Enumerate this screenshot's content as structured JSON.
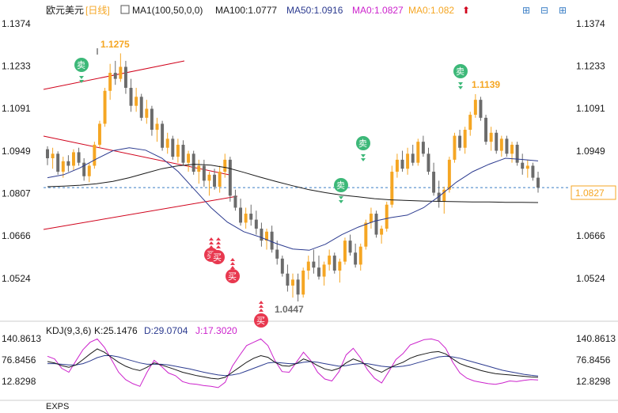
{
  "header": {
    "symbol": "欧元美元",
    "period": "[日线]",
    "ma_label": "MA1(100,50,0,0)",
    "ma100": "MA100:1.0777",
    "ma50": "MA50:1.0916",
    "ma0a": "MA0:1.0827",
    "ma0b": "MA0:1.082",
    "arrow": "⬆"
  },
  "toolbar": {
    "settings_icon": "⊞",
    "collapse_icon": "⊟",
    "expand_icon": "⊞"
  },
  "colors": {
    "up": "#f5a623",
    "down": "#6b6b6b",
    "ma100": "#1a1a1a",
    "ma50": "#2b3a8f",
    "channel": "#d0021b",
    "sell": "#3cb878",
    "buy": "#e8384f",
    "k": "#1a1a1a",
    "d": "#2b3a8f",
    "j": "#cc22cc"
  },
  "annotations": {
    "high1": "1.1275",
    "high2": "1.1139",
    "low": "1.0447",
    "last": "1.0827",
    "sell": "卖",
    "buy": "买"
  },
  "kdj": {
    "label": "KDJ(9,3,6)",
    "k": "K:25.1476",
    "d": "D:29.0704",
    "j": "J:17.3020",
    "ticks": [
      "140.8613",
      "76.8456",
      "12.8298"
    ]
  },
  "bottom_label": "EXPS",
  "chart_data": {
    "type": "candlestick",
    "y_ticks": [
      1.1374,
      1.1233,
      1.1091,
      1.0949,
      1.0807,
      1.0666,
      1.0524
    ],
    "ylim": [
      1.0418,
      1.1395
    ],
    "candles": [
      [
        1.0955,
        1.0965,
        1.0902,
        1.0925
      ],
      [
        1.0925,
        1.096,
        1.089,
        1.094
      ],
      [
        1.094,
        1.0948,
        1.087,
        1.088
      ],
      [
        1.088,
        1.093,
        1.086,
        1.0915
      ],
      [
        1.0915,
        1.0935,
        1.088,
        1.09
      ],
      [
        1.09,
        1.0955,
        1.0885,
        1.0945
      ],
      [
        1.0945,
        1.096,
        1.09,
        1.091
      ],
      [
        1.091,
        1.0925,
        1.085,
        1.0865
      ],
      [
        1.0865,
        1.091,
        1.0845,
        1.09
      ],
      [
        1.09,
        1.098,
        1.089,
        1.097
      ],
      [
        1.097,
        1.105,
        1.096,
        1.104
      ],
      [
        1.104,
        1.116,
        1.103,
        1.115
      ],
      [
        1.115,
        1.124,
        1.112,
        1.121
      ],
      [
        1.121,
        1.125,
        1.117,
        1.119
      ],
      [
        1.119,
        1.1275,
        1.118,
        1.123
      ],
      [
        1.123,
        1.125,
        1.114,
        1.116
      ],
      [
        1.116,
        1.119,
        1.108,
        1.11
      ],
      [
        1.11,
        1.116,
        1.108,
        1.113
      ],
      [
        1.113,
        1.114,
        1.105,
        1.106
      ],
      [
        1.106,
        1.112,
        1.104,
        1.109
      ],
      [
        1.109,
        1.11,
        1.1,
        1.102
      ],
      [
        1.102,
        1.106,
        1.098,
        1.104
      ],
      [
        1.104,
        1.105,
        1.095,
        1.096
      ],
      [
        1.096,
        1.101,
        1.094,
        1.099
      ],
      [
        1.099,
        1.1,
        1.092,
        1.093
      ],
      [
        1.093,
        1.099,
        1.091,
        1.097
      ],
      [
        1.097,
        1.0985,
        1.09,
        1.091
      ],
      [
        1.091,
        1.095,
        1.088,
        1.094
      ],
      [
        1.094,
        1.095,
        1.087,
        1.088
      ],
      [
        1.088,
        1.092,
        1.084,
        1.09
      ],
      [
        1.09,
        1.092,
        1.083,
        1.085
      ],
      [
        1.085,
        1.088,
        1.08,
        1.087
      ],
      [
        1.087,
        1.089,
        1.082,
        1.083
      ],
      [
        1.083,
        1.09,
        1.081,
        1.088
      ],
      [
        1.088,
        1.094,
        1.086,
        1.092
      ],
      [
        1.092,
        1.093,
        1.078,
        1.08
      ],
      [
        1.08,
        1.082,
        1.075,
        1.076
      ],
      [
        1.076,
        1.079,
        1.07,
        1.071
      ],
      [
        1.071,
        1.076,
        1.069,
        1.074
      ],
      [
        1.074,
        1.077,
        1.07,
        1.072
      ],
      [
        1.072,
        1.075,
        1.067,
        1.069
      ],
      [
        1.069,
        1.071,
        1.063,
        1.065
      ],
      [
        1.065,
        1.069,
        1.062,
        1.068
      ],
      [
        1.068,
        1.07,
        1.061,
        1.062
      ],
      [
        1.062,
        1.065,
        1.057,
        1.059
      ],
      [
        1.059,
        1.06,
        1.053,
        1.054
      ],
      [
        1.054,
        1.057,
        1.048,
        1.05
      ],
      [
        1.05,
        1.054,
        1.046,
        1.052
      ],
      [
        1.052,
        1.054,
        1.0447,
        1.047
      ],
      [
        1.047,
        1.056,
        1.046,
        1.055
      ],
      [
        1.055,
        1.06,
        1.052,
        1.058
      ],
      [
        1.058,
        1.062,
        1.054,
        1.056
      ],
      [
        1.056,
        1.06,
        1.052,
        1.053
      ],
      [
        1.053,
        1.058,
        1.05,
        1.057
      ],
      [
        1.057,
        1.062,
        1.055,
        1.06
      ],
      [
        1.06,
        1.061,
        1.054,
        1.055
      ],
      [
        1.055,
        1.059,
        1.051,
        1.058
      ],
      [
        1.058,
        1.066,
        1.057,
        1.065
      ],
      [
        1.065,
        1.067,
        1.06,
        1.061
      ],
      [
        1.061,
        1.064,
        1.056,
        1.057
      ],
      [
        1.057,
        1.064,
        1.055,
        1.063
      ],
      [
        1.063,
        1.072,
        1.062,
        1.071
      ],
      [
        1.071,
        1.076,
        1.069,
        1.074
      ],
      [
        1.074,
        1.075,
        1.066,
        1.067
      ],
      [
        1.067,
        1.07,
        1.064,
        1.069
      ],
      [
        1.069,
        1.078,
        1.068,
        1.077
      ],
      [
        1.077,
        1.09,
        1.076,
        1.088
      ],
      [
        1.088,
        1.094,
        1.086,
        1.092
      ],
      [
        1.092,
        1.095,
        1.088,
        1.089
      ],
      [
        1.089,
        1.096,
        1.087,
        1.094
      ],
      [
        1.094,
        1.097,
        1.09,
        1.091
      ],
      [
        1.091,
        1.099,
        1.09,
        1.098
      ],
      [
        1.098,
        1.1,
        1.093,
        1.094
      ],
      [
        1.094,
        1.096,
        1.087,
        1.088
      ],
      [
        1.088,
        1.091,
        1.08,
        1.081
      ],
      [
        1.081,
        1.085,
        1.076,
        1.078
      ],
      [
        1.078,
        1.083,
        1.074,
        1.082
      ],
      [
        1.082,
        1.093,
        1.081,
        1.092
      ],
      [
        1.092,
        1.101,
        1.091,
        1.1
      ],
      [
        1.1,
        1.102,
        1.095,
        1.096
      ],
      [
        1.096,
        1.103,
        1.094,
        1.102
      ],
      [
        1.102,
        1.108,
        1.1,
        1.107
      ],
      [
        1.107,
        1.1139,
        1.106,
        1.112
      ],
      [
        1.112,
        1.113,
        1.105,
        1.106
      ],
      [
        1.106,
        1.107,
        1.097,
        1.098
      ],
      [
        1.098,
        1.103,
        1.095,
        1.101
      ],
      [
        1.101,
        1.102,
        1.094,
        1.095
      ],
      [
        1.095,
        1.1,
        1.093,
        1.099
      ],
      [
        1.099,
        1.1,
        1.093,
        1.094
      ],
      [
        1.094,
        1.098,
        1.091,
        1.097
      ],
      [
        1.097,
        1.098,
        1.09,
        1.091
      ],
      [
        1.091,
        1.094,
        1.087,
        1.089
      ],
      [
        1.089,
        1.092,
        1.086,
        1.09
      ],
      [
        1.09,
        1.091,
        1.085,
        1.086
      ],
      [
        1.086,
        1.088,
        1.081,
        1.0827
      ]
    ],
    "ma100": [
      1.083,
      1.0832,
      1.0835,
      1.084,
      1.0848,
      1.086,
      1.0875,
      1.089,
      1.09,
      1.0905,
      1.0902,
      1.0893,
      1.0878,
      1.0862,
      1.0847,
      1.0833,
      1.082,
      1.081,
      1.0802,
      1.0796,
      1.079,
      1.0786,
      1.0784,
      1.0782,
      1.0781,
      1.078,
      1.0779,
      1.0779,
      1.0778,
      1.0778,
      1.0777
    ],
    "ma50": [
      1.086,
      1.087,
      1.0893,
      1.0923,
      1.095,
      1.096,
      1.0952,
      1.0925,
      1.088,
      1.082,
      1.076,
      1.0712,
      1.068,
      1.0662,
      1.064,
      1.0622,
      1.0618,
      1.0638,
      1.067,
      1.0695,
      1.0715,
      1.0727,
      1.0735,
      1.076,
      1.08,
      1.0845,
      1.088,
      1.0905,
      1.0925,
      1.0921,
      1.0916
    ],
    "kdj_k": [
      72,
      68,
      60,
      55,
      62,
      78,
      95,
      110,
      100,
      85,
      70,
      58,
      50,
      45,
      55,
      68,
      62,
      55,
      48,
      40,
      35,
      30,
      26,
      22,
      20,
      25,
      40,
      55,
      70,
      82,
      90,
      85,
      70,
      60,
      58,
      66,
      80,
      72,
      60,
      50,
      45,
      52,
      68,
      80,
      72,
      60,
      48,
      40,
      52,
      62,
      70,
      82,
      90,
      95,
      100,
      102,
      95,
      80,
      66,
      58,
      52,
      45,
      40,
      36,
      34,
      32,
      30,
      28,
      26,
      25
    ],
    "kdj_d": [
      66,
      66,
      64,
      62,
      62,
      66,
      74,
      84,
      90,
      90,
      86,
      80,
      74,
      68,
      64,
      64,
      64,
      62,
      58,
      54,
      50,
      45,
      40,
      36,
      32,
      30,
      32,
      36,
      44,
      52,
      60,
      68,
      70,
      68,
      66,
      66,
      70,
      72,
      70,
      66,
      62,
      58,
      60,
      64,
      66,
      66,
      62,
      58,
      56,
      56,
      58,
      62,
      68,
      74,
      80,
      86,
      88,
      86,
      82,
      76,
      70,
      64,
      58,
      52,
      46,
      42,
      38,
      34,
      31,
      29
    ],
    "kdj_j": [
      88,
      80,
      52,
      40,
      74,
      108,
      130,
      140,
      115,
      78,
      40,
      18,
      6,
      -2,
      40,
      76,
      58,
      38,
      30,
      12,
      6,
      4,
      0,
      -2,
      -6,
      10,
      58,
      90,
      120,
      130,
      140,
      120,
      75,
      42,
      40,
      70,
      100,
      76,
      40,
      20,
      14,
      42,
      92,
      112,
      84,
      48,
      22,
      8,
      42,
      78,
      96,
      122,
      130,
      138,
      140,
      134,
      112,
      70,
      38,
      22,
      14,
      10,
      6,
      4,
      8,
      14,
      12,
      16,
      18,
      17
    ]
  }
}
